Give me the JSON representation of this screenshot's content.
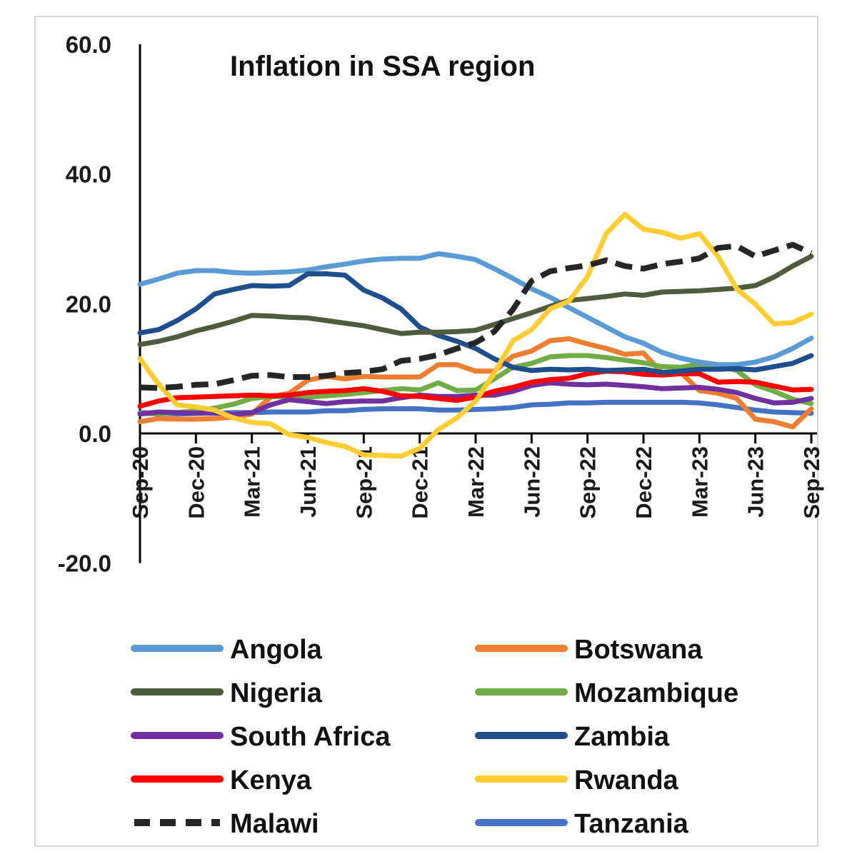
{
  "chart_data": {
    "type": "line",
    "title": "Inflation in SSA region",
    "xlabel": "",
    "ylabel": "",
    "ylim": [
      -20,
      60
    ],
    "yticks": [
      "60.0",
      "40.0",
      "20.0",
      "0.0",
      "-20.0"
    ],
    "grid": false,
    "legend_position": "bottom",
    "categories": [
      "Sep-20",
      "Oct-20",
      "Nov-20",
      "Dec-20",
      "Jan-21",
      "Feb-21",
      "Mar-21",
      "Apr-21",
      "May-21",
      "Jun-21",
      "Jul-21",
      "Aug-21",
      "Sep-21",
      "Oct-21",
      "Nov-21",
      "Dec-21",
      "Jan-22",
      "Feb-22",
      "Mar-22",
      "Apr-22",
      "May-22",
      "Jun-22",
      "Jul-22",
      "Aug-22",
      "Sep-22",
      "Oct-22",
      "Nov-22",
      "Dec-22",
      "Jan-23",
      "Feb-23",
      "Mar-23",
      "Apr-23",
      "May-23",
      "Jun-23",
      "Jul-23",
      "Aug-23",
      "Sep-23"
    ],
    "xtick_labels": [
      "Sep-20",
      "Dec-20",
      "Mar-21",
      "Jun-21",
      "Sep-21",
      "Dec-21",
      "Mar-22",
      "Jun-22",
      "Sep-22",
      "Dec-22",
      "Mar-23",
      "Jun-23",
      "Sep-23"
    ],
    "series": [
      {
        "name": "Angola",
        "color": "#5b9bd5",
        "dashed": false,
        "values": [
          23.0,
          23.8,
          24.7,
          25.1,
          25.1,
          24.8,
          24.7,
          24.8,
          24.9,
          25.2,
          25.7,
          26.1,
          26.6,
          26.9,
          27.0,
          27.0,
          27.7,
          27.3,
          26.8,
          25.4,
          23.9,
          22.3,
          21.0,
          19.4,
          17.9,
          16.4,
          14.9,
          13.9,
          12.5,
          11.6,
          11.0,
          10.6,
          10.6,
          11.0,
          11.8,
          13.1,
          14.7
        ]
      },
      {
        "name": "Botswana",
        "color": "#ed7d31",
        "dashed": false,
        "values": [
          1.8,
          2.3,
          2.2,
          2.2,
          2.3,
          2.5,
          3.0,
          5.6,
          6.2,
          8.2,
          8.8,
          8.4,
          8.8,
          8.7,
          8.7,
          8.7,
          10.6,
          10.6,
          9.6,
          9.6,
          11.9,
          12.7,
          14.3,
          14.6,
          13.8,
          13.1,
          12.2,
          12.4,
          9.3,
          9.4,
          6.6,
          6.2,
          5.4,
          2.2,
          1.8,
          1.0,
          3.8
        ]
      },
      {
        "name": "Nigeria",
        "color": "#4f5b3f",
        "dashed": false,
        "values": [
          13.7,
          14.2,
          14.9,
          15.8,
          16.5,
          17.3,
          18.2,
          18.1,
          17.9,
          17.8,
          17.4,
          17.0,
          16.6,
          16.0,
          15.4,
          15.6,
          15.6,
          15.7,
          15.9,
          16.8,
          17.7,
          18.6,
          19.6,
          20.5,
          20.8,
          21.1,
          21.5,
          21.3,
          21.8,
          21.9,
          22.0,
          22.2,
          22.4,
          22.8,
          24.1,
          25.8,
          27.3
        ]
      },
      {
        "name": "Mozambique",
        "color": "#70ad47",
        "dashed": false,
        "values": [
          3.1,
          3.0,
          3.2,
          3.5,
          3.9,
          4.5,
          5.4,
          5.7,
          5.6,
          5.6,
          5.8,
          6.0,
          6.3,
          6.6,
          6.9,
          6.7,
          7.8,
          6.6,
          6.7,
          8.4,
          10.2,
          10.8,
          11.8,
          12.0,
          12.0,
          11.7,
          11.3,
          10.9,
          10.3,
          10.2,
          10.7,
          10.5,
          9.7,
          7.5,
          6.5,
          5.3,
          4.6
        ]
      },
      {
        "name": "South Africa",
        "color": "#7030a0",
        "dashed": false,
        "values": [
          3.0,
          3.3,
          3.2,
          3.1,
          3.2,
          2.9,
          3.2,
          4.4,
          5.2,
          4.9,
          4.6,
          4.9,
          5.0,
          5.0,
          5.5,
          5.9,
          5.7,
          5.7,
          5.9,
          5.9,
          6.5,
          7.4,
          7.8,
          7.6,
          7.5,
          7.6,
          7.4,
          7.2,
          6.9,
          7.0,
          7.1,
          6.8,
          6.3,
          5.4,
          4.7,
          4.8,
          5.4
        ]
      },
      {
        "name": "Zambia",
        "color": "#1f4e8c",
        "dashed": false,
        "values": [
          15.5,
          16.0,
          17.4,
          19.2,
          21.5,
          22.2,
          22.8,
          22.7,
          22.8,
          24.6,
          24.6,
          24.4,
          22.1,
          20.9,
          19.2,
          16.4,
          15.1,
          14.2,
          13.1,
          11.5,
          10.2,
          9.7,
          9.9,
          9.8,
          9.9,
          9.7,
          9.8,
          9.9,
          9.4,
          9.6,
          9.9,
          9.9,
          10.0,
          9.8,
          10.3,
          10.8,
          12.0
        ]
      },
      {
        "name": "Kenya",
        "color": "#ff0000",
        "dashed": false,
        "values": [
          4.2,
          5.0,
          5.5,
          5.6,
          5.7,
          5.8,
          5.9,
          5.8,
          5.9,
          6.3,
          6.5,
          6.6,
          6.9,
          6.5,
          5.8,
          5.7,
          5.4,
          5.1,
          5.6,
          6.5,
          7.1,
          7.9,
          8.3,
          8.5,
          9.2,
          9.6,
          9.5,
          9.1,
          9.0,
          9.2,
          9.2,
          7.9,
          8.0,
          7.9,
          7.3,
          6.7,
          6.8
        ]
      },
      {
        "name": "Rwanda",
        "color": "#ffcc33",
        "dashed": false,
        "values": [
          11.5,
          7.6,
          4.4,
          4.1,
          3.6,
          2.4,
          1.7,
          1.5,
          -0.2,
          -0.6,
          -1.4,
          -2.0,
          -3.3,
          -3.4,
          -3.5,
          -2.3,
          0.6,
          2.4,
          5.0,
          9.3,
          14.3,
          16.0,
          19.2,
          20.4,
          24.2,
          30.8,
          33.8,
          31.5,
          31.0,
          30.1,
          30.8,
          27.3,
          22.3,
          19.9,
          16.9,
          17.1,
          18.4
        ]
      },
      {
        "name": "Malawi",
        "color": "#262626",
        "dashed": true,
        "values": [
          7.1,
          7.0,
          7.2,
          7.5,
          7.6,
          8.2,
          8.9,
          9.0,
          8.7,
          8.7,
          8.9,
          9.3,
          9.5,
          9.9,
          11.2,
          11.5,
          12.1,
          13.1,
          14.0,
          15.7,
          19.1,
          23.5,
          25.0,
          25.5,
          25.9,
          26.7,
          25.8,
          25.4,
          26.1,
          26.5,
          27.0,
          28.6,
          28.9,
          27.3,
          28.2,
          29.1,
          27.8
        ]
      },
      {
        "name": "Tanzania",
        "color": "#4472c4",
        "dashed": false,
        "values": [
          3.2,
          3.1,
          3.0,
          3.1,
          3.1,
          3.2,
          3.2,
          3.3,
          3.3,
          3.3,
          3.5,
          3.5,
          3.7,
          3.8,
          3.8,
          3.8,
          3.6,
          3.6,
          3.7,
          3.8,
          4.0,
          4.4,
          4.5,
          4.7,
          4.7,
          4.8,
          4.8,
          4.8,
          4.8,
          4.8,
          4.7,
          4.4,
          4.0,
          3.6,
          3.3,
          3.2,
          3.1
        ]
      }
    ]
  }
}
